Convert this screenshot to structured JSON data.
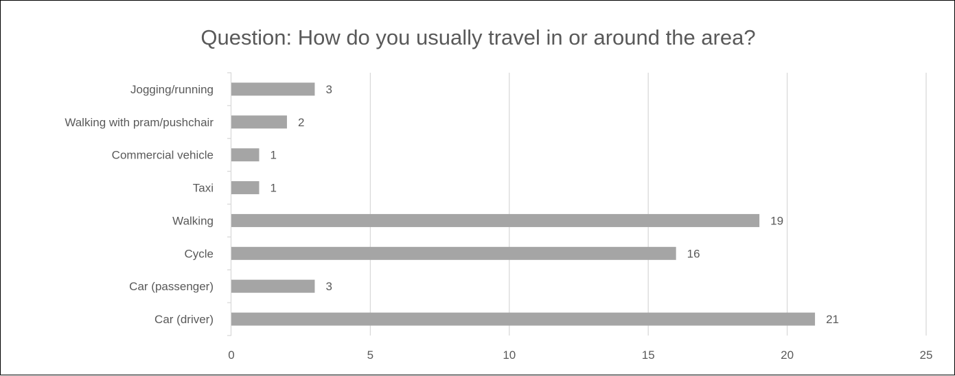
{
  "chart_data": {
    "type": "bar",
    "orientation": "horizontal",
    "title": "Question: How do you usually travel in or around the area?",
    "categories": [
      "Car (driver)",
      "Car (passenger)",
      "Cycle",
      "Walking",
      "Taxi",
      "Commercial vehicle",
      "Walking with pram/pushchair",
      "Jogging/running"
    ],
    "values": [
      21,
      3,
      16,
      19,
      1,
      1,
      2,
      3
    ],
    "xlim": [
      0,
      25
    ],
    "xticks": [
      "0",
      "5",
      "10",
      "15",
      "20",
      "25"
    ],
    "xlabel": "",
    "ylabel": "",
    "grid": true,
    "legend": "none",
    "data_labels": true,
    "colors": {
      "bar": "#a5a5a5",
      "grid": "#d9d9d9",
      "text": "#595959",
      "border": "#000000"
    }
  }
}
